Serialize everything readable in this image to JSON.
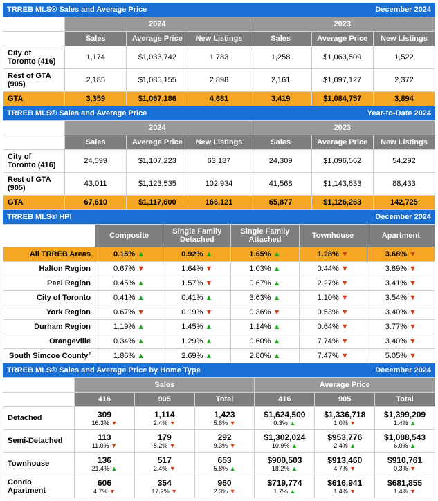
{
  "colors": {
    "title_bg": "#1a6fd4",
    "title_fg": "#ffffff",
    "year_bg": "#9a9a9a",
    "col_bg": "#7e7e7e",
    "highlight_bg": "#f5a623",
    "up": "#1aa81a",
    "down": "#d43c1a",
    "border": "#d0d0d0"
  },
  "t1": {
    "title": "TRREB MLS® Sales and Average Price",
    "period": "December 2024",
    "years": [
      "2024",
      "2023"
    ],
    "cols": [
      "Sales",
      "Average Price",
      "New Listings"
    ],
    "rows": [
      {
        "label": "City of Toronto (416)",
        "vals": [
          "1,174",
          "$1,033,742",
          "1,783",
          "1,258",
          "$1,063,509",
          "1,522"
        ]
      },
      {
        "label": "Rest of GTA (905)",
        "vals": [
          "2,185",
          "$1,085,155",
          "2,898",
          "2,161",
          "$1,097,127",
          "2,372"
        ]
      },
      {
        "label": "GTA",
        "vals": [
          "3,359",
          "$1,067,186",
          "4,681",
          "3,419",
          "$1,084,757",
          "3,894"
        ],
        "hl": true
      }
    ]
  },
  "t2": {
    "title": "TRREB MLS® Sales and Average Price",
    "period": "Year-to-Date 2024",
    "years": [
      "2024",
      "2023"
    ],
    "cols": [
      "Sales",
      "Average Price",
      "New Listings"
    ],
    "rows": [
      {
        "label": "City of Toronto (416)",
        "vals": [
          "24,599",
          "$1,107,223",
          "63,187",
          "24,309",
          "$1,096,562",
          "54,292"
        ]
      },
      {
        "label": "Rest of GTA (905)",
        "vals": [
          "43,011",
          "$1,123,535",
          "102,934",
          "41,568",
          "$1,143,633",
          "88,433"
        ]
      },
      {
        "label": "GTA",
        "vals": [
          "67,610",
          "$1,117,600",
          "166,121",
          "65,877",
          "$1,126,263",
          "142,725"
        ],
        "hl": true
      }
    ]
  },
  "hpi": {
    "title": "TRREB MLS® HPI",
    "period": "December 2024",
    "cols": [
      "Composite",
      "Single Family Detached",
      "Single Family Attached",
      "Townhouse",
      "Apartment"
    ],
    "rows": [
      {
        "label": "All TRREB Areas",
        "hl": true,
        "vals": [
          {
            "v": "0.15%",
            "d": "up"
          },
          {
            "v": "0.92%",
            "d": "up"
          },
          {
            "v": "1.65%",
            "d": "up"
          },
          {
            "v": "1.28%",
            "d": "down"
          },
          {
            "v": "3.68%",
            "d": "down"
          }
        ]
      },
      {
        "label": "Halton Region",
        "vals": [
          {
            "v": "0.67%",
            "d": "down"
          },
          {
            "v": "1.64%",
            "d": "down"
          },
          {
            "v": "1.03%",
            "d": "up"
          },
          {
            "v": "0.44%",
            "d": "down"
          },
          {
            "v": "3.89%",
            "d": "down"
          }
        ]
      },
      {
        "label": "Peel Region",
        "vals": [
          {
            "v": "0.45%",
            "d": "up"
          },
          {
            "v": "1.57%",
            "d": "down"
          },
          {
            "v": "0.67%",
            "d": "up"
          },
          {
            "v": "2.27%",
            "d": "down"
          },
          {
            "v": "3.41%",
            "d": "down"
          }
        ]
      },
      {
        "label": "City of Toronto",
        "vals": [
          {
            "v": "0.41%",
            "d": "up"
          },
          {
            "v": "0.41%",
            "d": "up"
          },
          {
            "v": "3.63%",
            "d": "up"
          },
          {
            "v": "1.10%",
            "d": "down"
          },
          {
            "v": "3.54%",
            "d": "down"
          }
        ]
      },
      {
        "label": "York Region",
        "vals": [
          {
            "v": "0.67%",
            "d": "down"
          },
          {
            "v": "0.19%",
            "d": "down"
          },
          {
            "v": "0.36%",
            "d": "down"
          },
          {
            "v": "0.53%",
            "d": "down"
          },
          {
            "v": "3.40%",
            "d": "down"
          }
        ]
      },
      {
        "label": "Durham Region",
        "vals": [
          {
            "v": "1.19%",
            "d": "up"
          },
          {
            "v": "1.45%",
            "d": "up"
          },
          {
            "v": "1.14%",
            "d": "up"
          },
          {
            "v": "0.64%",
            "d": "down"
          },
          {
            "v": "3.77%",
            "d": "down"
          }
        ]
      },
      {
        "label": "Orangeville",
        "vals": [
          {
            "v": "0.34%",
            "d": "up"
          },
          {
            "v": "1.29%",
            "d": "up"
          },
          {
            "v": "0.60%",
            "d": "up"
          },
          {
            "v": "7.74%",
            "d": "down"
          },
          {
            "v": "3.40%",
            "d": "down"
          }
        ]
      },
      {
        "label": "South Simcoe County²",
        "vals": [
          {
            "v": "1.86%",
            "d": "up"
          },
          {
            "v": "2.69%",
            "d": "up"
          },
          {
            "v": "2.80%",
            "d": "up"
          },
          {
            "v": "7.47%",
            "d": "down"
          },
          {
            "v": "5.05%",
            "d": "down"
          }
        ]
      }
    ]
  },
  "ht": {
    "title": "TRREB MLS® Sales and Average Price by Home Type",
    "period": "December 2024",
    "groups": [
      "Sales",
      "Average Price"
    ],
    "cols": [
      "416",
      "905",
      "Total"
    ],
    "rows": [
      {
        "label": "Detached",
        "cells": [
          {
            "v": "309",
            "p": "16.3%",
            "d": "down"
          },
          {
            "v": "1,114",
            "p": "2.4%",
            "d": "down"
          },
          {
            "v": "1,423",
            "p": "5.8%",
            "d": "down"
          },
          {
            "v": "$1,624,500",
            "p": "0.3%",
            "d": "up"
          },
          {
            "v": "$1,336,718",
            "p": "1.0%",
            "d": "down"
          },
          {
            "v": "$1,399,209",
            "p": "1.4%",
            "d": "up"
          }
        ]
      },
      {
        "label": "Semi-Detached",
        "cells": [
          {
            "v": "113",
            "p": "11.0%",
            "d": "down"
          },
          {
            "v": "179",
            "p": "8.2%",
            "d": "down"
          },
          {
            "v": "292",
            "p": "9.3%",
            "d": "down"
          },
          {
            "v": "$1,302,024",
            "p": "10.9%",
            "d": "up"
          },
          {
            "v": "$953,776",
            "p": "2.4%",
            "d": "up"
          },
          {
            "v": "$1,088,543",
            "p": "6.0%",
            "d": "up"
          }
        ]
      },
      {
        "label": "Townhouse",
        "cells": [
          {
            "v": "136",
            "p": "21.4%",
            "d": "up"
          },
          {
            "v": "517",
            "p": "2.4%",
            "d": "down"
          },
          {
            "v": "653",
            "p": "5.8%",
            "d": "up"
          },
          {
            "v": "$900,503",
            "p": "18.2%",
            "d": "up"
          },
          {
            "v": "$913,460",
            "p": "4.7%",
            "d": "down"
          },
          {
            "v": "$910,761",
            "p": "0.3%",
            "d": "down"
          }
        ]
      },
      {
        "label": "Condo Apartment",
        "cells": [
          {
            "v": "606",
            "p": "4.7%",
            "d": "down"
          },
          {
            "v": "354",
            "p": "17.2%",
            "d": "down"
          },
          {
            "v": "960",
            "p": "2.3%",
            "d": "down"
          },
          {
            "v": "$719,774",
            "p": "1.7%",
            "d": "up"
          },
          {
            "v": "$616,941",
            "p": "1.4%",
            "d": "down"
          },
          {
            "v": "$681,855",
            "p": "1.4%",
            "d": "down"
          }
        ]
      }
    ]
  }
}
